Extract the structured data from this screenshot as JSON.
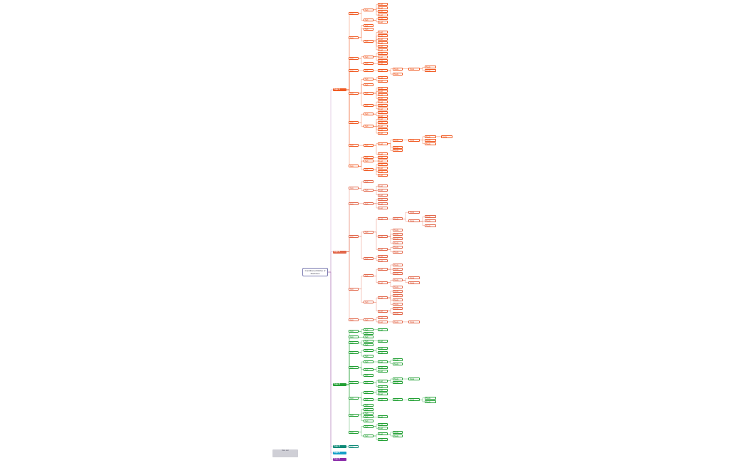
{
  "root": {
    "label": "Conditioned Reflex of Machines"
  },
  "note": {
    "text": "Note text"
  },
  "branches": [
    {
      "label": "Topic 1",
      "color": "#f05a22",
      "children": [
        {
          "label": "Item",
          "children": [
            {
              "label": "Sub",
              "children": [
                {
                  "label": "Leaf"
                },
                {
                  "label": "Leaf"
                },
                {
                  "label": "Leaf"
                },
                {
                  "label": "Leaf"
                }
              ]
            },
            {
              "label": "Sub",
              "children": [
                {
                  "label": "Leaf"
                },
                {
                  "label": "Leaf"
                }
              ]
            }
          ]
        },
        {
          "label": "Item",
          "children": [
            {
              "label": "Sub"
            },
            {
              "label": "Sub"
            },
            {
              "label": "Sub",
              "children": [
                {
                  "label": "Leaf"
                },
                {
                  "label": "Leaf"
                },
                {
                  "label": "Leaf"
                },
                {
                  "label": "Leaf"
                },
                {
                  "label": "Leaf"
                },
                {
                  "label": "Leaf"
                }
              ]
            }
          ]
        },
        {
          "label": "Item",
          "children": [
            {
              "label": "Sub",
              "children": [
                {
                  "label": "Leaf"
                },
                {
                  "label": "Leaf"
                },
                {
                  "label": "Leaf"
                }
              ]
            },
            {
              "label": "Sub",
              "children": [
                {
                  "label": "Leaf"
                }
              ]
            }
          ]
        },
        {
          "label": "Item",
          "children": [
            {
              "label": "Sub",
              "children": [
                {
                  "label": "Leaf",
                  "children": [
                    {
                      "label": "Node",
                      "children": [
                        {
                          "label": "Node",
                          "children": [
                            {
                              "label": "Node"
                            },
                            {
                              "label": "Node"
                            }
                          ]
                        }
                      ]
                    },
                    {
                      "label": "Node"
                    }
                  ]
                }
              ]
            }
          ]
        },
        {
          "label": "Item",
          "children": [
            {
              "label": "Sub",
              "children": [
                {
                  "label": "Leaf"
                },
                {
                  "label": "Leaf"
                }
              ]
            },
            {
              "label": "Sub"
            },
            {
              "label": "Sub",
              "children": [
                {
                  "label": "Leaf"
                },
                {
                  "label": "Leaf"
                },
                {
                  "label": "Leaf"
                },
                {
                  "label": "Leaf"
                }
              ]
            },
            {
              "label": "Sub",
              "children": [
                {
                  "label": "Leaf"
                },
                {
                  "label": "Leaf"
                },
                {
                  "label": "Leaf"
                }
              ]
            }
          ]
        },
        {
          "label": "Item",
          "children": [
            {
              "label": "Sub",
              "children": [
                {
                  "label": "Leaf"
                },
                {
                  "label": "Leaf"
                }
              ]
            },
            {
              "label": "Sub",
              "children": [
                {
                  "label": "Leaf"
                },
                {
                  "label": "Leaf"
                },
                {
                  "label": "Leaf"
                },
                {
                  "label": "Leaf"
                },
                {
                  "label": "Leaf"
                }
              ]
            }
          ]
        },
        {
          "label": "Item",
          "children": [
            {
              "label": "Sub",
              "children": [
                {
                  "label": "Leaf",
                  "children": [
                    {
                      "label": "Node",
                      "children": [
                        {
                          "label": "Node",
                          "children": [
                            {
                              "label": "Node",
                              "children": [
                                {
                                  "label": "Node"
                                }
                              ]
                            },
                            {
                              "label": "Node"
                            },
                            {
                              "label": "Node"
                            }
                          ]
                        }
                      ]
                    },
                    {
                      "label": "Node"
                    },
                    {
                      "label": "Node"
                    }
                  ]
                },
                {
                  "label": "Leaf"
                }
              ]
            }
          ]
        },
        {
          "label": "Item",
          "children": [
            {
              "label": "Sub",
              "children": [
                {
                  "label": "Leaf"
                }
              ]
            },
            {
              "label": "Sub",
              "children": [
                {
                  "label": "Leaf"
                }
              ]
            },
            {
              "label": "Sub",
              "children": [
                {
                  "label": "Leaf"
                },
                {
                  "label": "Leaf"
                },
                {
                  "label": "Leaf"
                },
                {
                  "label": "Leaf"
                }
              ]
            }
          ]
        }
      ]
    },
    {
      "label": "Topic 2",
      "color": "#e2674a",
      "children": [
        {
          "label": "Item",
          "children": [
            {
              "label": "Sub"
            },
            {
              "label": "Sub",
              "children": [
                {
                  "label": "Leaf"
                },
                {
                  "label": "Leaf"
                },
                {
                  "label": "Leaf"
                }
              ]
            }
          ]
        },
        {
          "label": "Item",
          "children": [
            {
              "label": "Sub",
              "children": [
                {
                  "label": "Leaf"
                },
                {
                  "label": "Leaf"
                },
                {
                  "label": "Leaf"
                }
              ]
            }
          ]
        },
        {
          "label": "Item",
          "children": [
            {
              "label": "Sub",
              "children": [
                {
                  "label": "Leaf",
                  "children": [
                    {
                      "label": "Node",
                      "children": [
                        {
                          "label": "Node"
                        },
                        {
                          "label": "Node",
                          "children": [
                            {
                              "label": "Node"
                            },
                            {
                              "label": "Node"
                            },
                            {
                              "label": "Node"
                            }
                          ]
                        }
                      ]
                    }
                  ]
                },
                {
                  "label": "Leaf",
                  "children": [
                    {
                      "label": "Node"
                    },
                    {
                      "label": "Node"
                    },
                    {
                      "label": "Node"
                    },
                    {
                      "label": "Node"
                    }
                  ]
                },
                {
                  "label": "Leaf",
                  "children": [
                    {
                      "label": "Node"
                    },
                    {
                      "label": "Node"
                    }
                  ]
                }
              ]
            },
            {
              "label": "Sub",
              "children": [
                {
                  "label": "Leaf"
                },
                {
                  "label": "Leaf"
                }
              ]
            }
          ]
        },
        {
          "label": "Item",
          "children": [
            {
              "label": "Sub",
              "children": [
                {
                  "label": "Leaf",
                  "children": [
                    {
                      "label": "Node"
                    },
                    {
                      "label": "Node"
                    },
                    {
                      "label": "Node"
                    }
                  ]
                },
                {
                  "label": "Leaf",
                  "children": [
                    {
                      "label": "Node",
                      "children": [
                        {
                          "label": "Node"
                        },
                        {
                          "label": "Node"
                        }
                      ]
                    },
                    {
                      "label": "Node"
                    }
                  ]
                }
              ]
            },
            {
              "label": "Sub",
              "children": [
                {
                  "label": "Leaf",
                  "children": [
                    {
                      "label": "Node"
                    },
                    {
                      "label": "Node"
                    },
                    {
                      "label": "Node"
                    },
                    {
                      "label": "Node"
                    }
                  ]
                },
                {
                  "label": "Leaf",
                  "children": [
                    {
                      "label": "Node"
                    },
                    {
                      "label": "Node"
                    }
                  ]
                }
              ]
            }
          ]
        },
        {
          "label": "Item",
          "children": [
            {
              "label": "Sub",
              "children": [
                {
                  "label": "Leaf"
                },
                {
                  "label": "Leaf",
                  "children": [
                    {
                      "label": "Node",
                      "children": [
                        {
                          "label": "Node"
                        }
                      ]
                    }
                  ]
                }
              ]
            }
          ]
        }
      ]
    },
    {
      "label": "Topic 3",
      "color": "#22a034",
      "children": [
        {
          "label": "Item",
          "children": [
            {
              "label": "Sub",
              "children": [
                {
                  "label": "Leaf"
                }
              ]
            },
            {
              "label": "Sub"
            }
          ]
        },
        {
          "label": "Item",
          "children": [
            {
              "label": "Sub"
            }
          ]
        },
        {
          "label": "Item",
          "children": [
            {
              "label": "Sub",
              "children": [
                {
                  "label": "Leaf"
                }
              ]
            },
            {
              "label": "Sub"
            }
          ]
        },
        {
          "label": "Item",
          "children": [
            {
              "label": "Sub",
              "children": [
                {
                  "label": "Leaf"
                },
                {
                  "label": "Leaf"
                }
              ]
            },
            {
              "label": "Sub"
            }
          ]
        },
        {
          "label": "Item",
          "children": [
            {
              "label": "Sub",
              "children": [
                {
                  "label": "Leaf",
                  "children": [
                    {
                      "label": "Node"
                    },
                    {
                      "label": "Node"
                    }
                  ]
                }
              ]
            },
            {
              "label": "Sub",
              "children": [
                {
                  "label": "Leaf"
                },
                {
                  "label": "Leaf"
                }
              ]
            },
            {
              "label": "Sub"
            }
          ]
        },
        {
          "label": "Item",
          "children": [
            {
              "label": "Sub",
              "children": [
                {
                  "label": "Leaf",
                  "children": [
                    {
                      "label": "Node",
                      "children": [
                        {
                          "label": "Node"
                        }
                      ]
                    },
                    {
                      "label": "Node"
                    }
                  ]
                },
                {
                  "label": "Leaf"
                }
              ]
            }
          ]
        },
        {
          "label": "Item",
          "children": [
            {
              "label": "Sub",
              "children": [
                {
                  "label": "Leaf"
                },
                {
                  "label": "Leaf"
                }
              ]
            },
            {
              "label": "Sub",
              "children": [
                {
                  "label": "Leaf",
                  "children": [
                    {
                      "label": "Node",
                      "children": [
                        {
                          "label": "Node",
                          "children": [
                            {
                              "label": "Node"
                            },
                            {
                              "label": "Node"
                            }
                          ]
                        }
                      ]
                    }
                  ]
                }
              ]
            },
            {
              "label": "Sub"
            }
          ]
        },
        {
          "label": "Item",
          "children": [
            {
              "label": "Sub"
            },
            {
              "label": "Sub"
            },
            {
              "label": "Sub",
              "children": [
                {
                  "label": "Leaf"
                }
              ]
            },
            {
              "label": "Sub"
            }
          ]
        },
        {
          "label": "Item",
          "children": [
            {
              "label": "Sub",
              "children": [
                {
                  "label": "Leaf"
                },
                {
                  "label": "Leaf"
                }
              ]
            },
            {
              "label": "Sub",
              "children": [
                {
                  "label": "Leaf",
                  "children": [
                    {
                      "label": "Node"
                    },
                    {
                      "label": "Node"
                    }
                  ]
                },
                {
                  "label": "Leaf"
                }
              ]
            }
          ]
        }
      ]
    },
    {
      "label": "Topic 4",
      "color": "#0f8a78",
      "children": [
        {
          "label": "Item"
        }
      ]
    },
    {
      "label": "Topic 5",
      "color": "#16a0c8",
      "children": []
    },
    {
      "label": "Topic 6",
      "color": "#8a2aa8",
      "children": []
    }
  ]
}
